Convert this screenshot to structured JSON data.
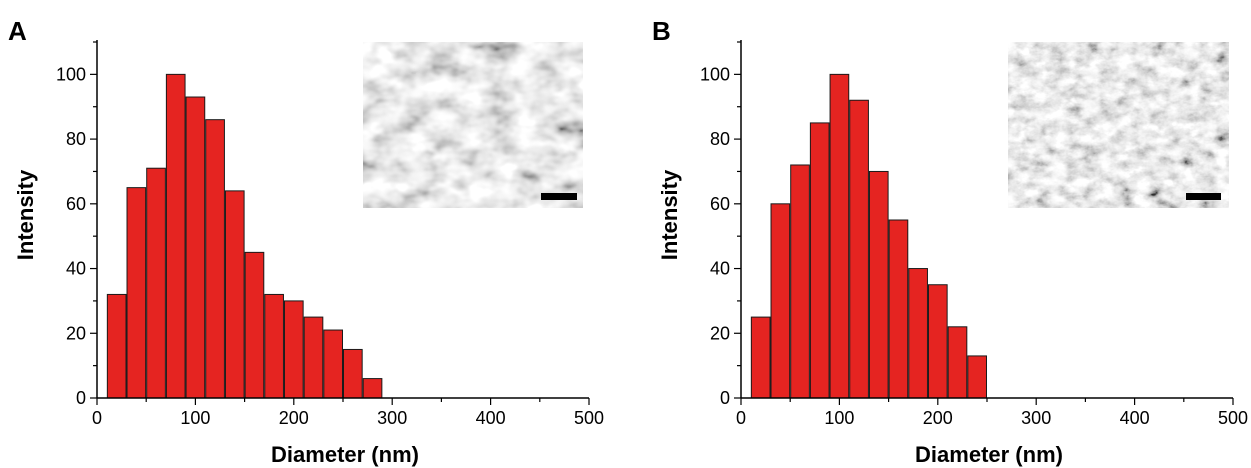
{
  "chart_data": [
    {
      "type": "bar",
      "panel_label": "A",
      "x": [
        20,
        40,
        60,
        80,
        100,
        120,
        140,
        160,
        180,
        200,
        220,
        240,
        260,
        280
      ],
      "values": [
        32,
        65,
        71,
        100,
        93,
        86,
        64,
        45,
        32,
        30,
        25,
        21,
        15,
        6
      ],
      "xlabel": "Diameter (nm)",
      "ylabel": "Intensity",
      "xlim": [
        0,
        500
      ],
      "ylim": [
        0,
        110
      ],
      "xticks": [
        0,
        100,
        200,
        300,
        400,
        500
      ],
      "yticks": [
        0,
        20,
        40,
        60,
        80,
        100
      ],
      "bar_color": "#e52421",
      "grid": false,
      "inset": "SEM micrograph with black scale bar, top-right"
    },
    {
      "type": "bar",
      "panel_label": "B",
      "x": [
        20,
        40,
        60,
        80,
        100,
        120,
        140,
        160,
        180,
        200,
        220,
        240
      ],
      "values": [
        25,
        60,
        72,
        85,
        100,
        92,
        70,
        55,
        40,
        35,
        22,
        13
      ],
      "xlabel": "Diameter (nm)",
      "ylabel": "Intensity",
      "xlim": [
        0,
        500
      ],
      "ylim": [
        0,
        110
      ],
      "xticks": [
        0,
        100,
        200,
        300,
        400,
        500
      ],
      "yticks": [
        0,
        20,
        40,
        60,
        80,
        100
      ],
      "bar_color": "#e52421",
      "grid": false,
      "inset": "SEM micrograph with black scale bar, top-right"
    }
  ]
}
